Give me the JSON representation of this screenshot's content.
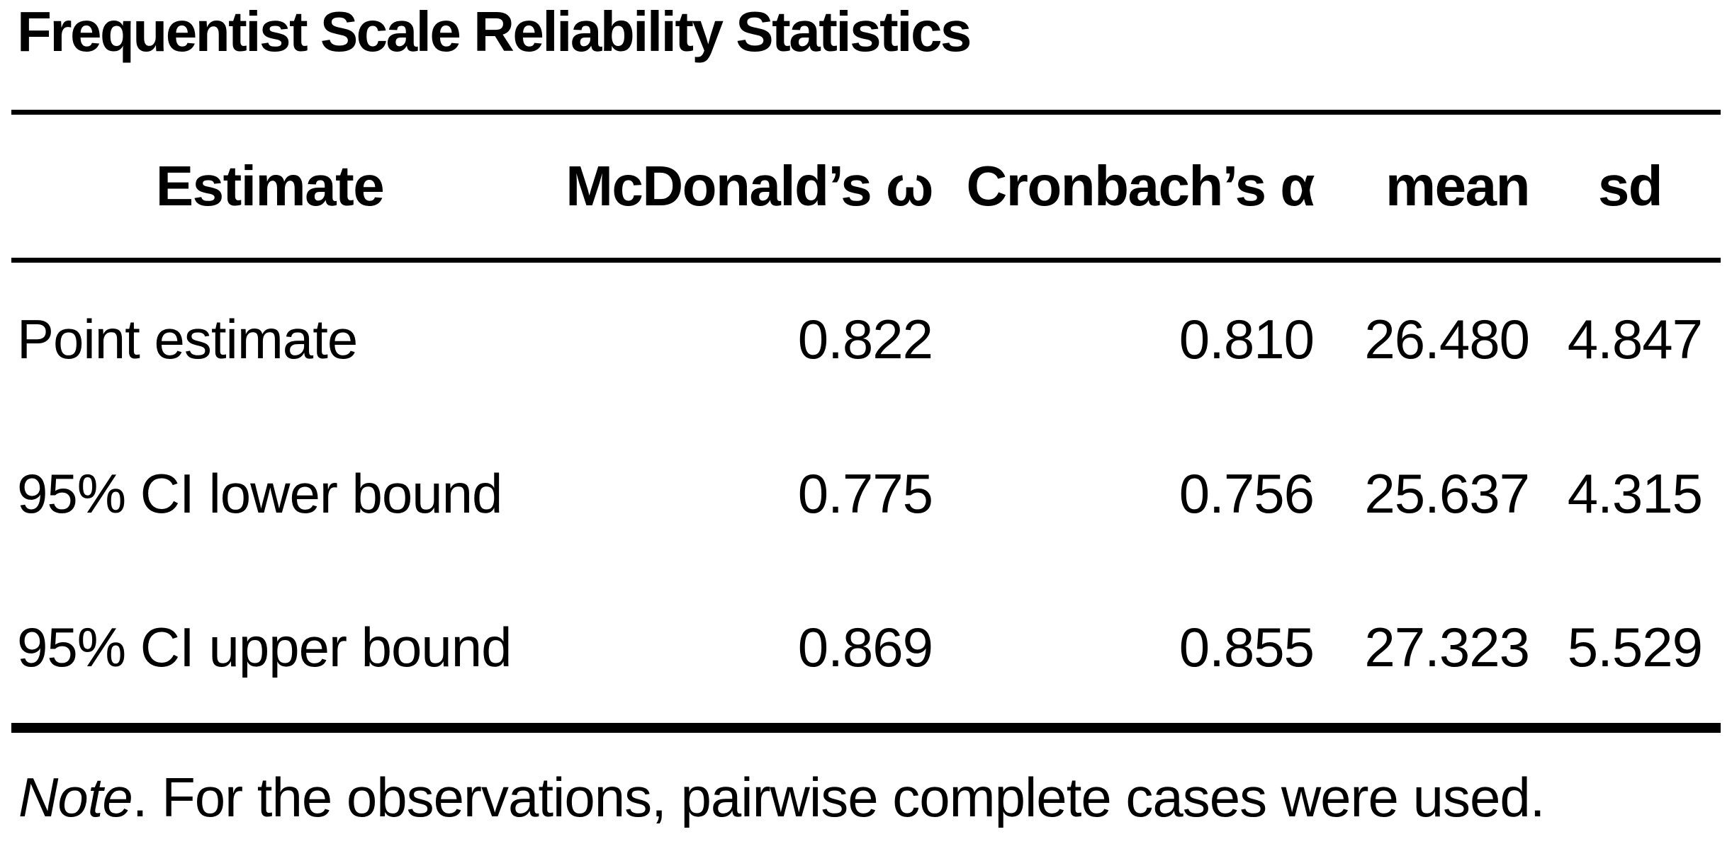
{
  "table": {
    "title": "Frequentist Scale Reliability Statistics",
    "columns": [
      {
        "id": "estimate",
        "label": "Estimate"
      },
      {
        "id": "mcdonalds_omega",
        "label": "McDonald’s ω"
      },
      {
        "id": "cronbachs_alpha",
        "label": "Cronbach’s α"
      },
      {
        "id": "mean",
        "label": "mean"
      },
      {
        "id": "sd",
        "label": "sd"
      }
    ],
    "rows": [
      {
        "estimate": "Point estimate",
        "omega": "0.822",
        "alpha": "0.810",
        "mean": "26.480",
        "sd": "4.847"
      },
      {
        "estimate": "95% CI lower bound",
        "omega": "0.775",
        "alpha": "0.756",
        "mean": "25.637",
        "sd": "4.315"
      },
      {
        "estimate": "95% CI upper bound",
        "omega": "0.869",
        "alpha": "0.855",
        "mean": "27.323",
        "sd": "5.529"
      }
    ],
    "note": {
      "label": "Note",
      "text": ". For the observations, pairwise complete cases were used."
    }
  },
  "colors": {
    "text": "#000000",
    "background": "#ffffff",
    "rule": "#000000"
  }
}
